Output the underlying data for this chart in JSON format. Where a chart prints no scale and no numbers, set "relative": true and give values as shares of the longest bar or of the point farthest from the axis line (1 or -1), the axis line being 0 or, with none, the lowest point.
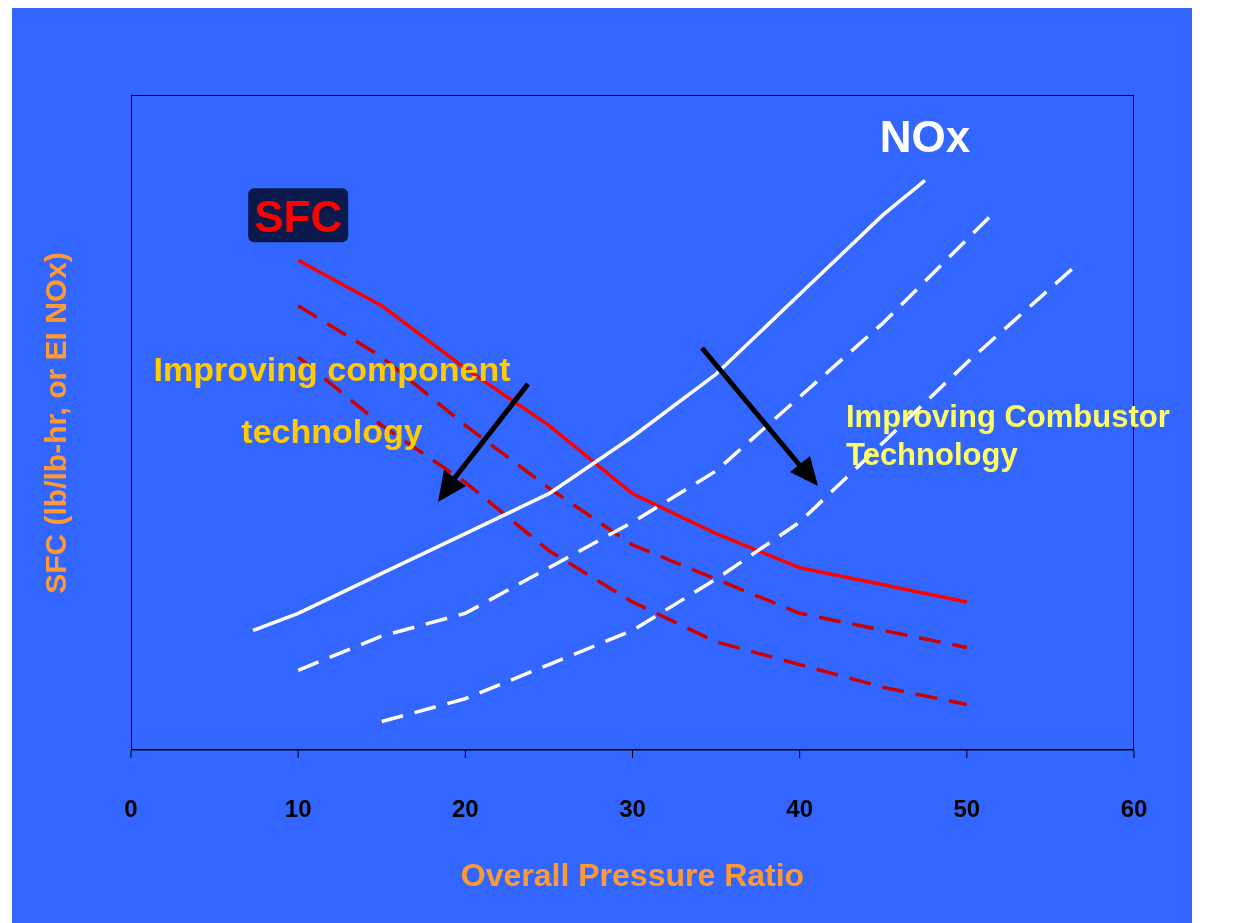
{
  "chart_data": {
    "type": "line",
    "relative": true,
    "xlabel": "Overall Pressure Ratio",
    "ylabel": "SFC (lb/lb-hr, or EI NOx)",
    "xlim": [
      0,
      60
    ],
    "xticks": [
      0,
      10,
      20,
      30,
      40,
      50,
      60
    ],
    "series": [
      {
        "name": "SFC",
        "color": "#ff0000",
        "line_style": "solid",
        "x": [
          10,
          15,
          20,
          25,
          30,
          35,
          40,
          45,
          50
        ],
        "values": [
          0.86,
          0.78,
          0.67,
          0.57,
          0.45,
          0.38,
          0.32,
          0.29,
          0.26
        ]
      },
      {
        "color": "#cc0000",
        "line_style": "dashed",
        "x": [
          10,
          15,
          20,
          25,
          30,
          35,
          40,
          45,
          50
        ],
        "values": [
          0.78,
          0.69,
          0.57,
          0.46,
          0.36,
          0.3,
          0.24,
          0.21,
          0.18
        ]
      },
      {
        "color": "#cc0000",
        "line_style": "dashed",
        "x": [
          10,
          15,
          20,
          25,
          30,
          35,
          40,
          45,
          50
        ],
        "values": [
          0.69,
          0.57,
          0.47,
          0.35,
          0.26,
          0.19,
          0.15,
          0.11,
          0.08
        ]
      },
      {
        "name": "NOx",
        "color": "#ffffff",
        "line_style": "solid",
        "x": [
          7.3,
          10,
          15,
          20,
          25,
          30,
          35,
          40,
          45,
          47.5
        ],
        "values": [
          0.21,
          0.24,
          0.31,
          0.38,
          0.45,
          0.55,
          0.66,
          0.8,
          0.94,
          1
        ]
      },
      {
        "color": "#ffffff",
        "line_style": "dashed",
        "x": [
          10,
          15,
          20,
          25,
          30,
          35,
          40,
          45,
          51.5
        ],
        "values": [
          0.14,
          0.2,
          0.24,
          0.32,
          0.4,
          0.49,
          0.62,
          0.75,
          0.94
        ]
      },
      {
        "color": "#ffffff",
        "line_style": "dashed",
        "x": [
          15,
          20,
          25,
          30,
          35,
          40,
          45,
          50,
          56.5
        ],
        "values": [
          0.05,
          0.09,
          0.15,
          0.21,
          0.3,
          0.4,
          0.54,
          0.68,
          0.85
        ]
      }
    ],
    "annotations": [
      "Improving component technology",
      "Improving Combustor Technology"
    ]
  }
}
